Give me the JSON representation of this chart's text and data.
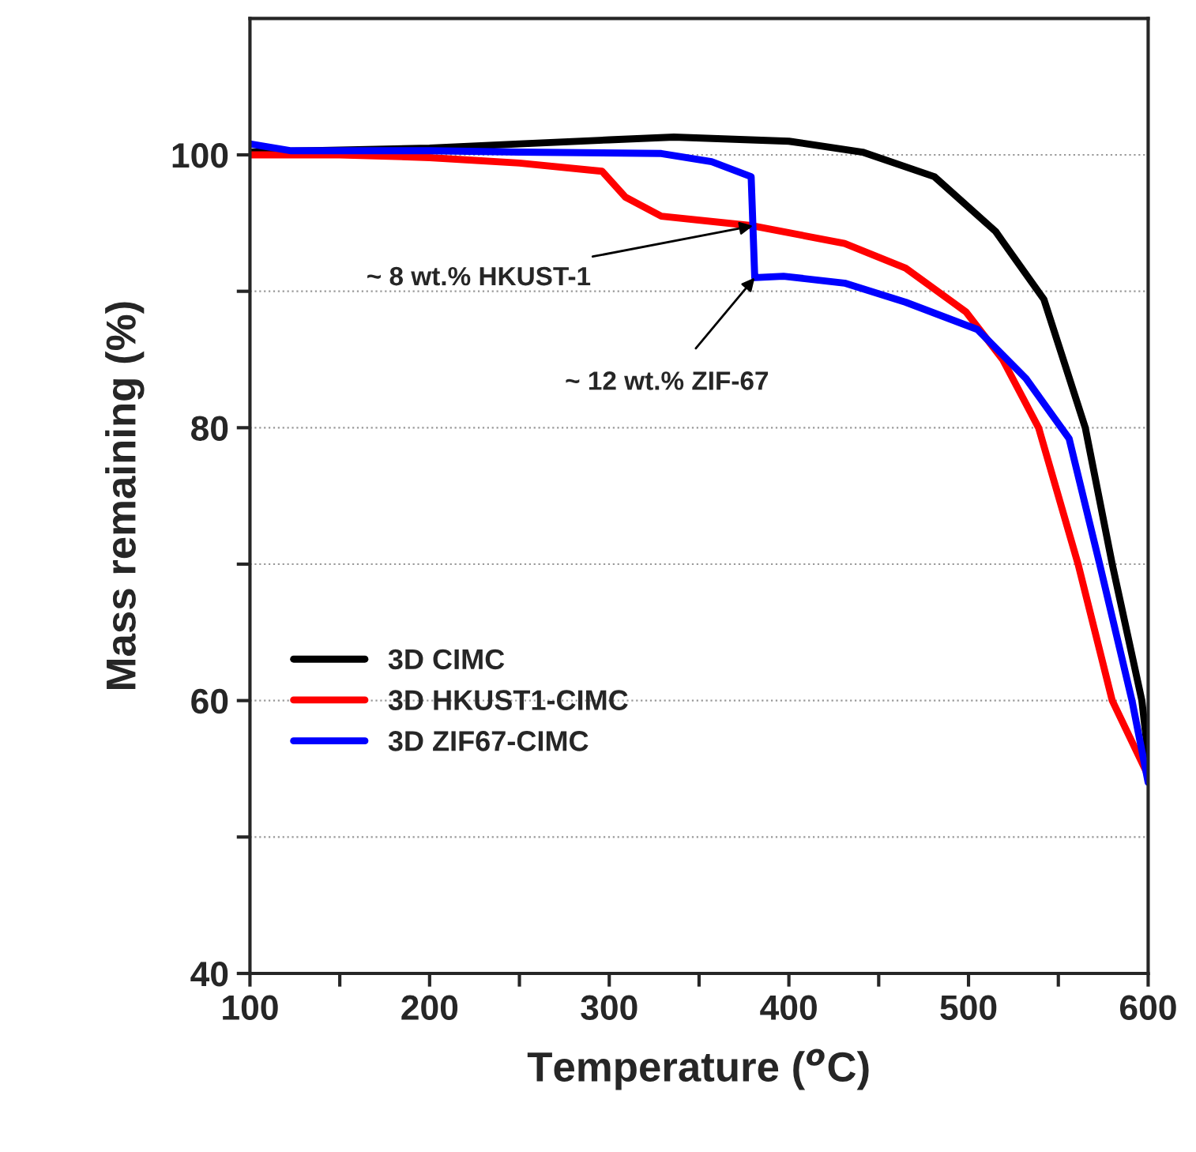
{
  "chart_data": {
    "type": "line",
    "xlabel": "Temperature ($^{o}$C)",
    "ylabel": "Mass remaining (%)",
    "xlim": [
      100,
      600
    ],
    "ylim": [
      40,
      110
    ],
    "xticks": [
      100,
      {
        "value": 150,
        "label": null
      },
      200,
      {
        "value": 250,
        "label": null
      },
      300,
      {
        "value": 350,
        "label": null
      },
      400,
      {
        "value": 450,
        "label": null
      },
      500,
      {
        "value": 550,
        "label": null
      },
      600
    ],
    "yticks": [
      40,
      {
        "value": 50,
        "label": null
      },
      60,
      {
        "value": 70,
        "label": null
      },
      80,
      {
        "value": 90,
        "label": null
      },
      100
    ],
    "grid": "y",
    "legend": "lower left",
    "line_style": "solid",
    "marker": "none",
    "series": [
      {
        "name": "3D CIMC",
        "color": "#000000",
        "x": [
          100,
          150,
          200,
          250,
          300,
          336,
          400,
          441,
          481,
          515,
          542,
          565,
          580,
          596.5,
          600
        ],
        "values": [
          100.2,
          null,
          100.5,
          100.8,
          101.1,
          101.3,
          101,
          100.2,
          98.4,
          94.4,
          89.4,
          80,
          70,
          60,
          56
        ]
      },
      {
        "name": "3D HKUST1-CIMC",
        "color": "#ff0000",
        "x": [
          100,
          150,
          200,
          250,
          296,
          309,
          329,
          380,
          431,
          465,
          498.5,
          519,
          539,
          561,
          580,
          600
        ],
        "values": [
          100,
          100,
          99.8,
          99.4,
          98.8,
          96.9,
          95.5,
          94.8,
          93.5,
          91.7,
          88.5,
          85,
          80,
          70,
          60,
          54.5
        ]
      },
      {
        "name": "3D ZIF67-CIMC",
        "color": "#0000ff",
        "x": [
          100,
          123,
          200,
          250,
          329,
          357,
          379,
          381,
          397,
          431,
          465,
          505,
          532,
          556,
          573,
          591,
          600
        ],
        "values": [
          100.8,
          100.3,
          100.3,
          100.2,
          100.1,
          99.5,
          98.4,
          91,
          91.1,
          90.6,
          89.2,
          87.2,
          83.6,
          79.2,
          70,
          60,
          54
        ]
      }
    ],
    "annotations": [
      {
        "text": "~ 8 wt.% HKUST-1",
        "x": 380,
        "y": 94.8
      },
      {
        "text": "~ 12 wt.% ZIF-67",
        "x": 381,
        "y": 91
      }
    ]
  }
}
